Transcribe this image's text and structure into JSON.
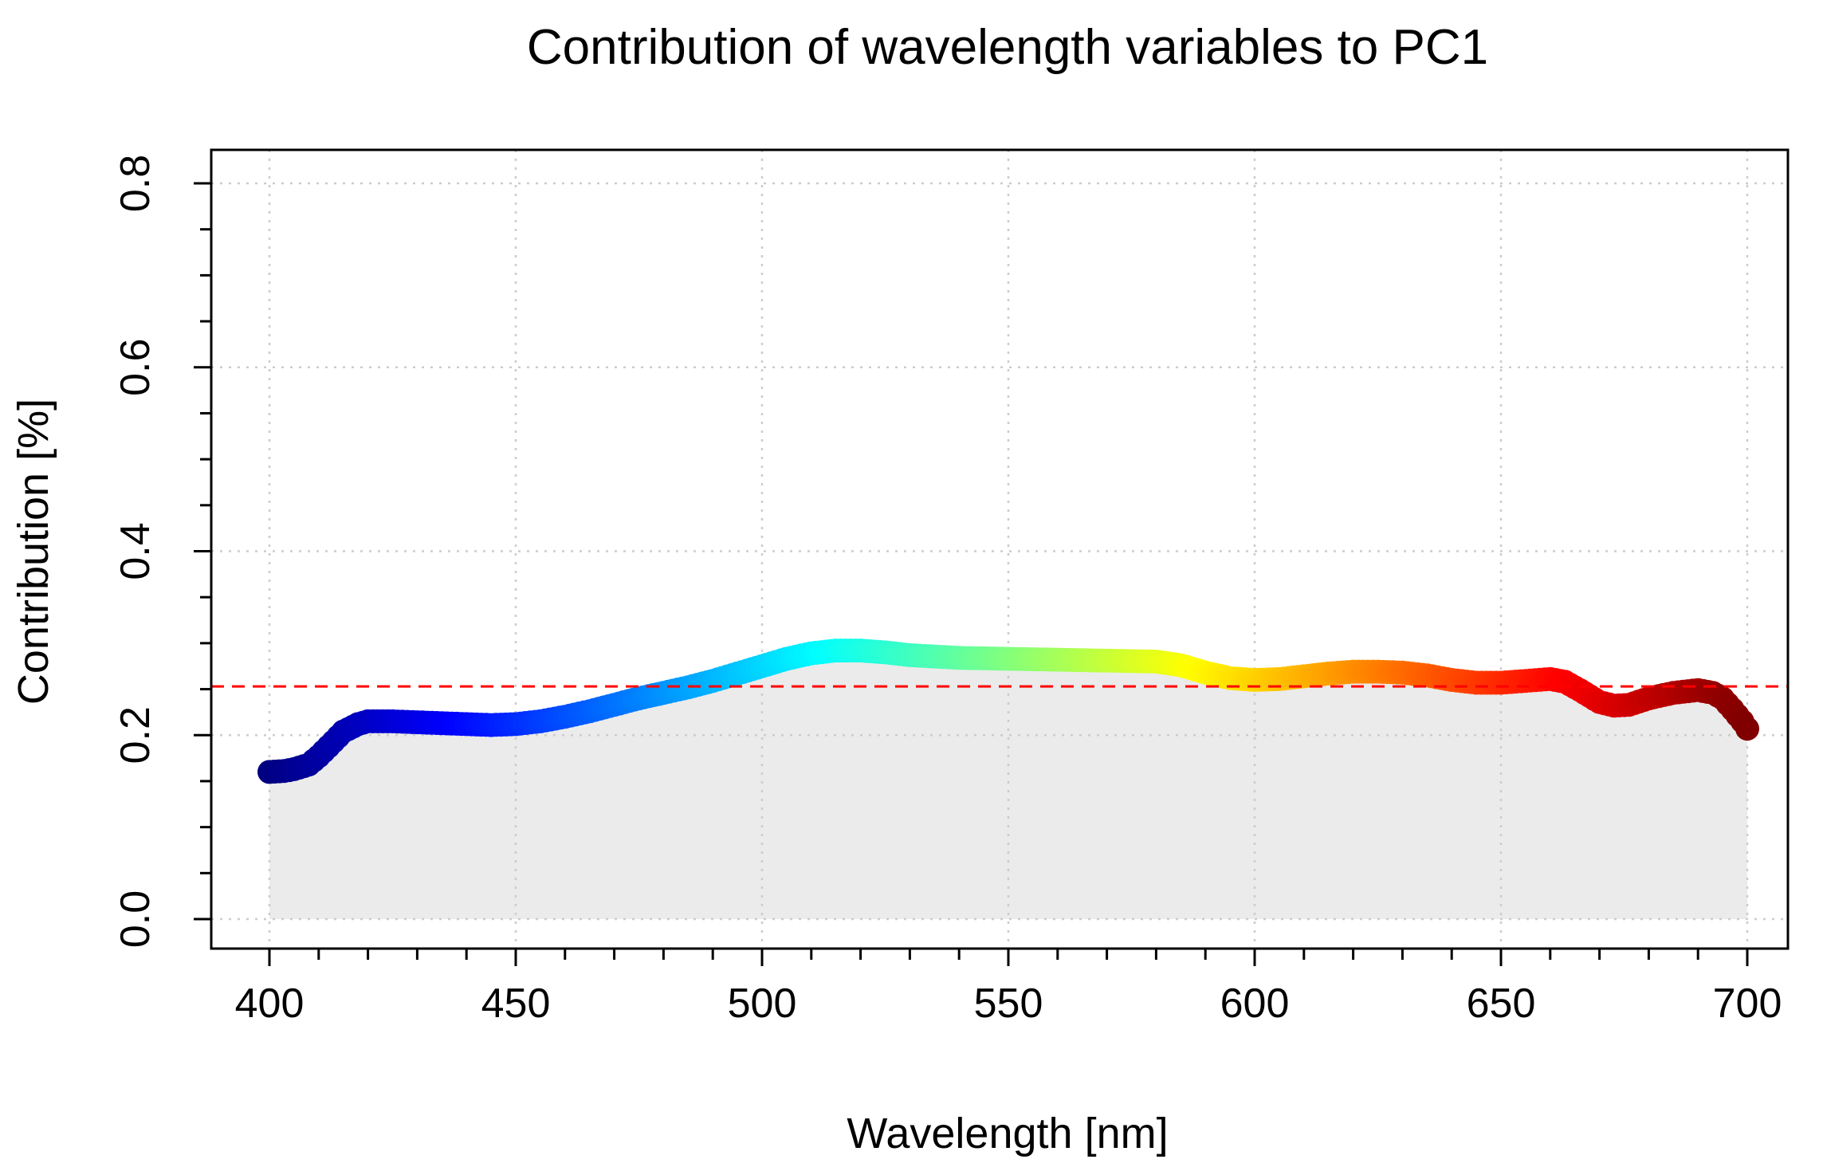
{
  "chart_data": {
    "type": "line",
    "title": "Contribution of wavelength variables to PC1",
    "xlabel": "Wavelength [nm]",
    "ylabel": "Contribution [%]",
    "xlim": [
      400,
      700
    ],
    "ylim": [
      0,
      0.8
    ],
    "x_ticks": [
      "400",
      "450",
      "500",
      "550",
      "600",
      "650",
      "700"
    ],
    "y_ticks": [
      "0.0",
      "0.2",
      "0.4",
      "0.6",
      "0.8"
    ],
    "grid": true,
    "grid_style": "dotted",
    "area_fill": true,
    "line_coloring": "wavelength colormap (blue to red)",
    "reference_line": {
      "y": 0.253,
      "color": "#ff0000",
      "style": "dashed"
    },
    "x": [
      400,
      403,
      405,
      408,
      410,
      413,
      415,
      418,
      420,
      425,
      430,
      435,
      440,
      445,
      450,
      455,
      460,
      465,
      470,
      475,
      480,
      485,
      490,
      495,
      500,
      505,
      510,
      515,
      520,
      525,
      530,
      540,
      550,
      560,
      570,
      580,
      585,
      590,
      595,
      600,
      605,
      610,
      615,
      620,
      625,
      630,
      635,
      640,
      645,
      650,
      655,
      660,
      663,
      666,
      670,
      673,
      676,
      680,
      685,
      690,
      693,
      695,
      697,
      699,
      700
    ],
    "y": [
      0.16,
      0.161,
      0.163,
      0.168,
      0.177,
      0.193,
      0.204,
      0.212,
      0.215,
      0.215,
      0.214,
      0.213,
      0.212,
      0.211,
      0.212,
      0.215,
      0.22,
      0.226,
      0.233,
      0.24,
      0.246,
      0.252,
      0.259,
      0.267,
      0.275,
      0.283,
      0.289,
      0.292,
      0.292,
      0.29,
      0.287,
      0.284,
      0.283,
      0.282,
      0.281,
      0.28,
      0.276,
      0.268,
      0.262,
      0.26,
      0.261,
      0.264,
      0.267,
      0.269,
      0.269,
      0.268,
      0.265,
      0.26,
      0.257,
      0.257,
      0.259,
      0.261,
      0.258,
      0.249,
      0.236,
      0.232,
      0.233,
      0.24,
      0.246,
      0.249,
      0.246,
      0.24,
      0.228,
      0.215,
      0.207
    ]
  }
}
